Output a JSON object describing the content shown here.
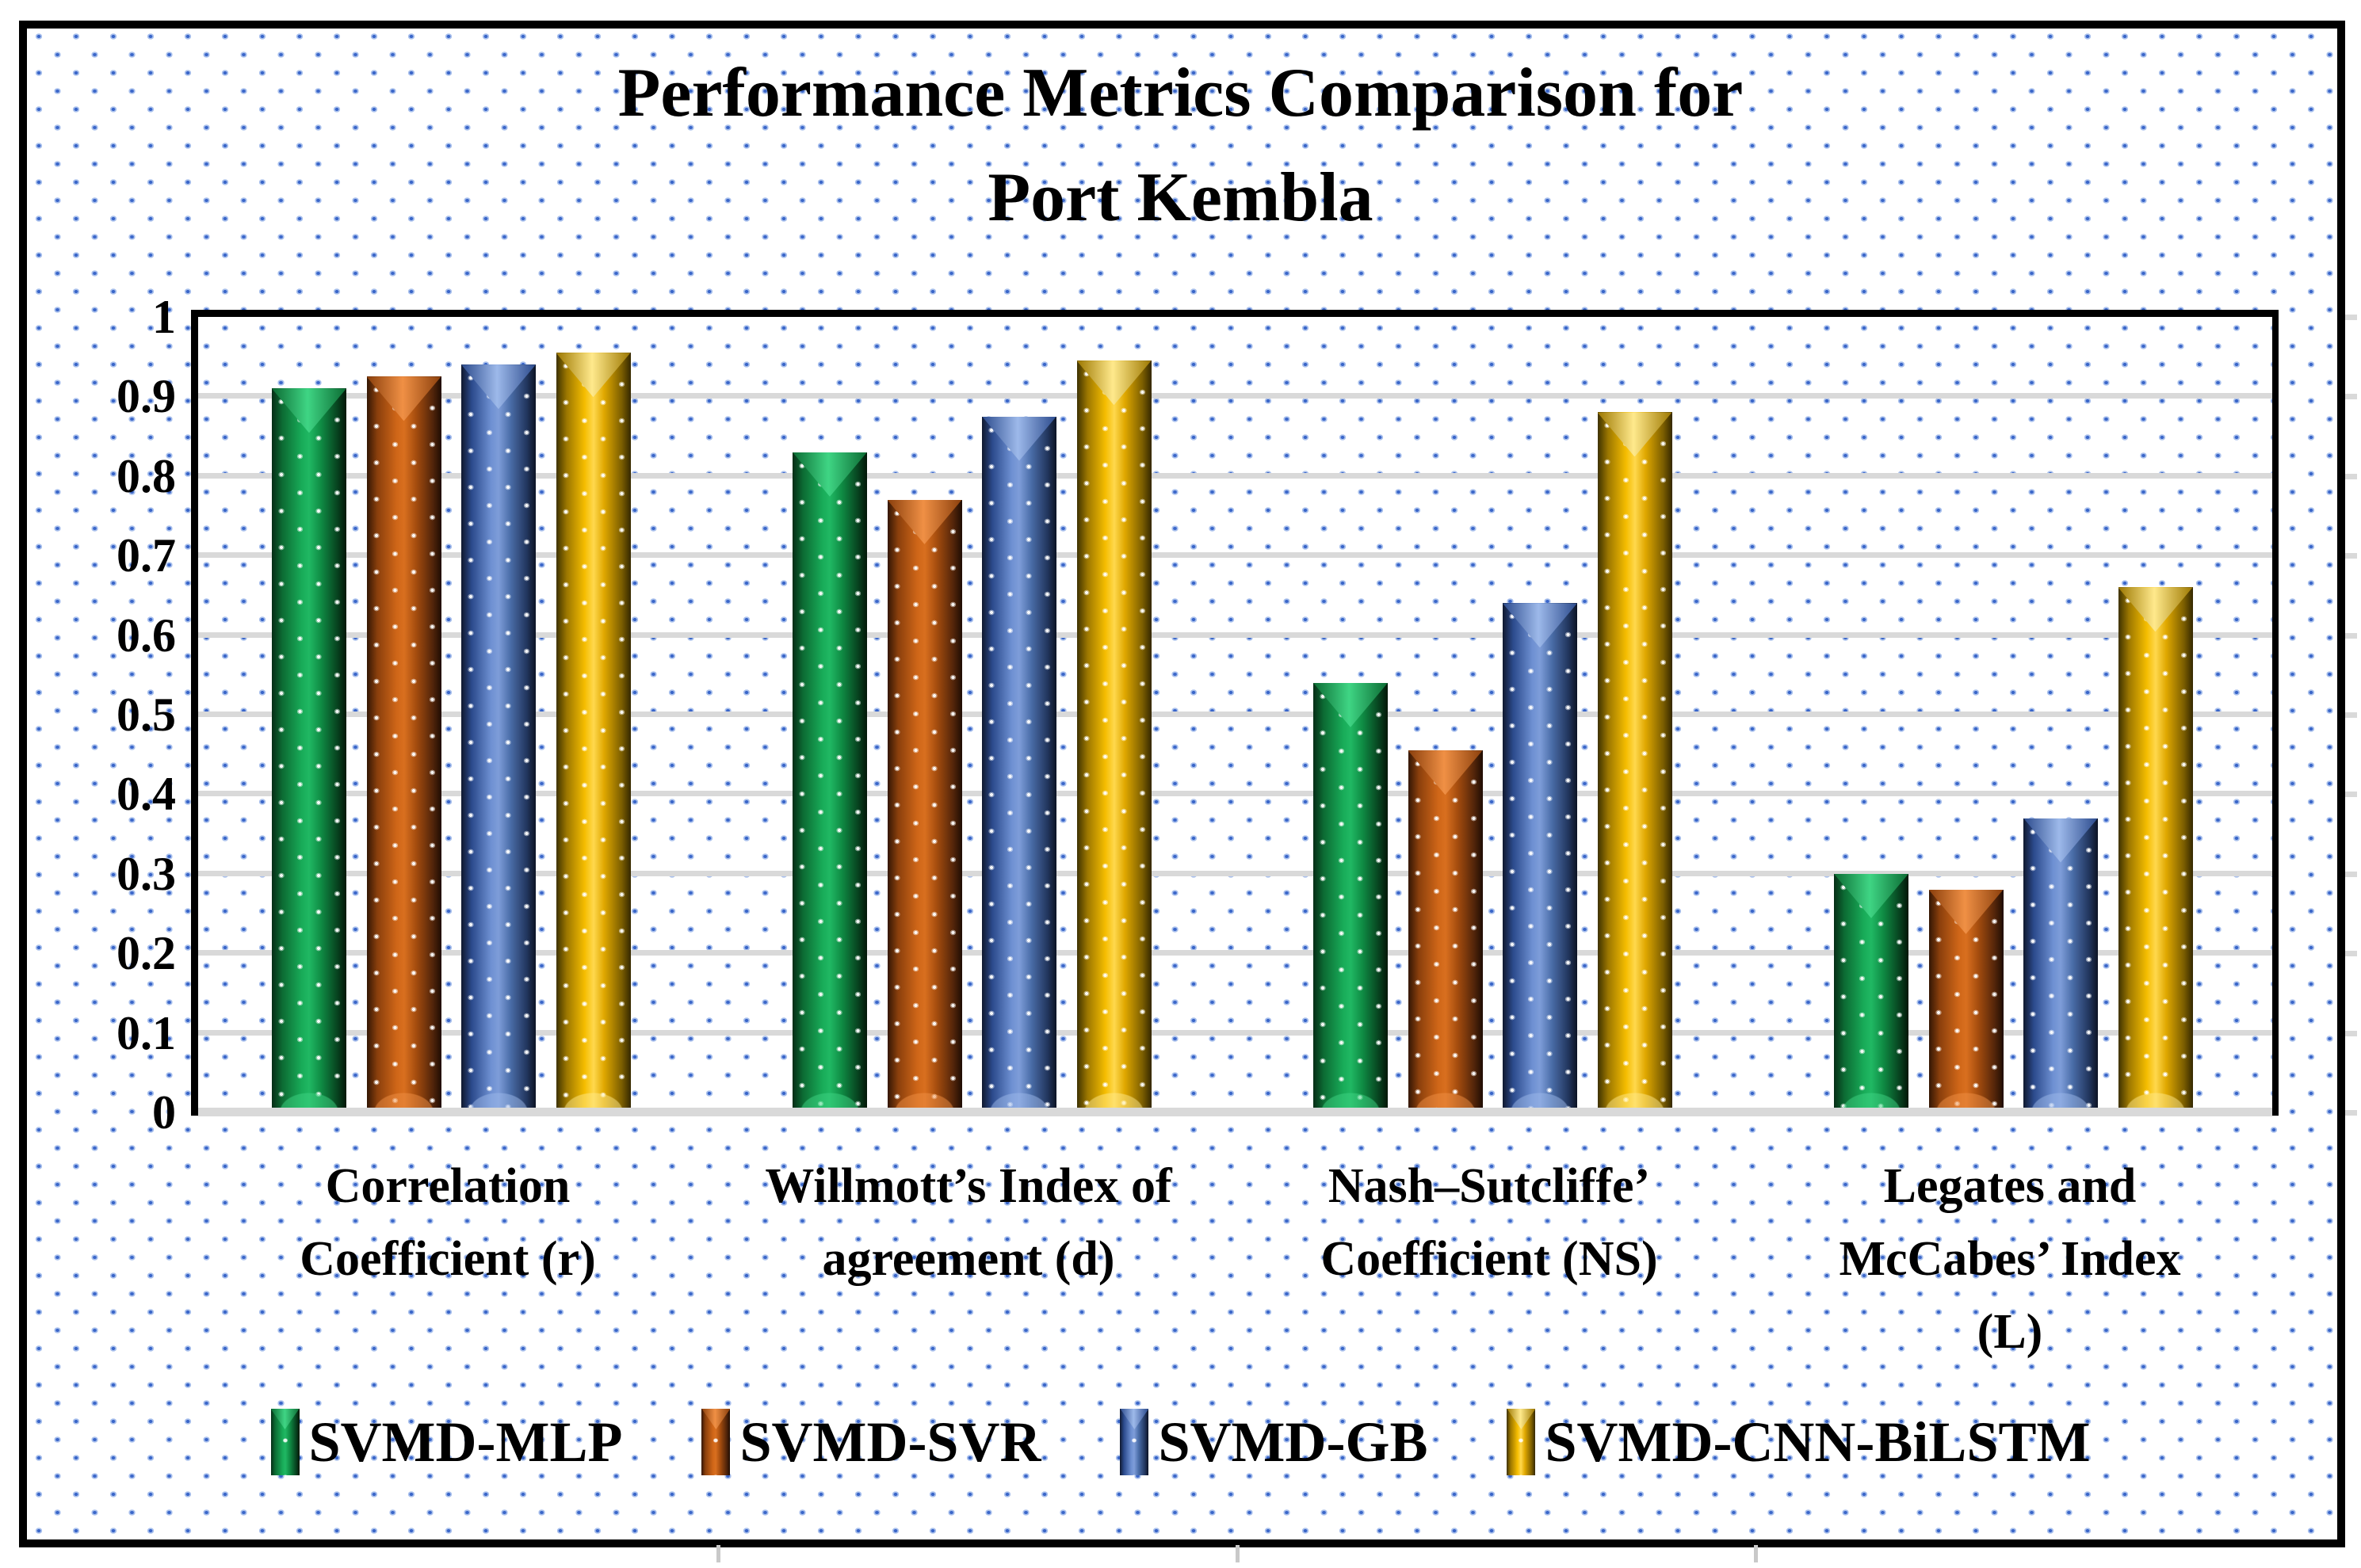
{
  "figure": {
    "title_line1": "Performance Metrics Comparison for",
    "title_line2": "Port Kembla"
  },
  "chart_data": {
    "type": "bar",
    "title": "Performance Metrics Comparison for Port Kembla",
    "categories": [
      "Correlation\nCoefficient (r)",
      "Willmott’s Index of\nagreement (d)",
      "Nash–Sutcliffe’\nCoefficient (NS)",
      "Legates and\nMcCabes’ Index\n(L)"
    ],
    "series": [
      {
        "name": "SVMD-MLP",
        "color": "#18ab58",
        "values": [
          0.91,
          0.83,
          0.54,
          0.3
        ]
      },
      {
        "name": "SVMD-SVR",
        "color": "#c55a11",
        "values": [
          0.925,
          0.77,
          0.455,
          0.28
        ]
      },
      {
        "name": "SVMD-GB",
        "color": "#4472c4",
        "values": [
          0.94,
          0.875,
          0.64,
          0.37
        ]
      },
      {
        "name": "SVMD-CNN-BiLSTM",
        "color": "#ffc000",
        "values": [
          0.955,
          0.945,
          0.88,
          0.66
        ]
      }
    ],
    "ylim": [
      0,
      1
    ],
    "yticks": [
      "1",
      "0.9",
      "0.8",
      "0.7",
      "0.6",
      "0.5",
      "0.4",
      "0.3",
      "0.2",
      "0.1",
      "0"
    ],
    "grid": "horizontal",
    "legend_position": "bottom",
    "background_pattern_color": "#3a66c9",
    "gridline_color": "#d9d9d9"
  }
}
